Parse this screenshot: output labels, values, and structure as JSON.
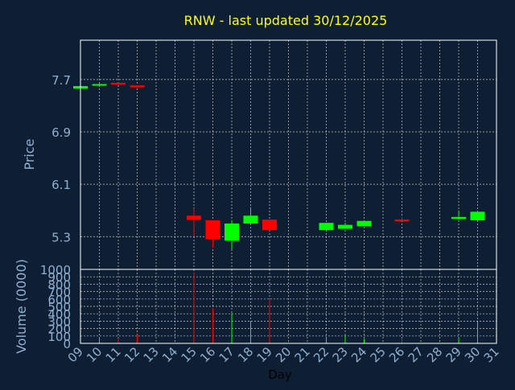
{
  "colors": {
    "background": "#0f1f33",
    "title": "#ffff00",
    "axis_text": "#8fb0d0",
    "frame": "#ffffff",
    "grid": "#ffffff",
    "up": "#00ff00",
    "down": "#ff0000"
  },
  "chart_data": [
    {
      "type": "candlestick",
      "title": "RNW - last updated 30/12/2025",
      "ylabel": "Price",
      "ylim": [
        4.8,
        8.3
      ],
      "yticks": [
        5.3,
        6.1,
        6.9,
        7.7
      ],
      "ytick_labels": [
        "5.3",
        "6.1",
        "6.9",
        "7.7"
      ],
      "grid": true,
      "candles": [
        {
          "day": 9,
          "open": 7.56,
          "close": 7.6,
          "high": 7.6,
          "low": 7.56
        },
        {
          "day": 10,
          "open": 7.61,
          "close": 7.63,
          "high": 7.64,
          "low": 7.61
        },
        {
          "day": 11,
          "open": 7.65,
          "close": 7.64,
          "high": 7.65,
          "low": 7.64
        },
        {
          "day": 12,
          "open": 7.61,
          "close": 7.58,
          "high": 7.61,
          "low": 7.58
        },
        {
          "day": 15,
          "open": 5.62,
          "close": 5.56,
          "high": 5.73,
          "low": 5.3
        },
        {
          "day": 16,
          "open": 5.55,
          "close": 5.26,
          "high": 5.55,
          "low": 5.13
        },
        {
          "day": 17,
          "open": 5.24,
          "close": 5.5,
          "high": 5.55,
          "low": 5.11
        },
        {
          "day": 18,
          "open": 5.5,
          "close": 5.62,
          "high": 5.75,
          "low": 5.5
        },
        {
          "day": 19,
          "open": 5.56,
          "close": 5.4,
          "high": 5.56,
          "low": 5.4
        },
        {
          "day": 22,
          "open": 5.4,
          "close": 5.51,
          "high": 5.51,
          "low": 5.4
        },
        {
          "day": 23,
          "open": 5.42,
          "close": 5.48,
          "high": 5.51,
          "low": 5.42
        },
        {
          "day": 24,
          "open": 5.46,
          "close": 5.54,
          "high": 5.54,
          "low": 5.46
        },
        {
          "day": 26,
          "open": 5.56,
          "close": 5.55,
          "high": 5.6,
          "low": 5.54
        },
        {
          "day": 29,
          "open": 5.57,
          "close": 5.6,
          "high": 5.7,
          "low": 5.56
        },
        {
          "day": 30,
          "open": 5.55,
          "close": 5.68,
          "high": 5.68,
          "low": 5.55
        }
      ]
    },
    {
      "type": "bar",
      "ylabel": "Volume (0000)",
      "xlabel": "Day",
      "ylim": [
        0,
        1000
      ],
      "yticks": [
        0,
        100,
        200,
        300,
        400,
        500,
        600,
        700,
        800,
        900,
        1000
      ],
      "ytick_labels": [
        "0",
        "100",
        "200",
        "300",
        "400",
        "500",
        "600",
        "700",
        "800",
        "900",
        "1000"
      ],
      "categories": [
        "09",
        "10",
        "11",
        "12",
        "13",
        "14",
        "15",
        "16",
        "17",
        "18",
        "19",
        "20",
        "21",
        "22",
        "23",
        "24",
        "25",
        "26",
        "27",
        "28",
        "29",
        "30",
        "31"
      ],
      "grid": true,
      "bars": [
        {
          "day": 9,
          "value": 15,
          "direction": "up"
        },
        {
          "day": 10,
          "value": 80,
          "direction": "up"
        },
        {
          "day": 11,
          "value": 60,
          "direction": "down"
        },
        {
          "day": 12,
          "value": 120,
          "direction": "down"
        },
        {
          "day": 15,
          "value": 960,
          "direction": "down"
        },
        {
          "day": 16,
          "value": 480,
          "direction": "down"
        },
        {
          "day": 17,
          "value": 410,
          "direction": "up"
        },
        {
          "day": 18,
          "value": 300,
          "direction": "up"
        },
        {
          "day": 19,
          "value": 600,
          "direction": "down"
        },
        {
          "day": 22,
          "value": 90,
          "direction": "up"
        },
        {
          "day": 23,
          "value": 110,
          "direction": "up"
        },
        {
          "day": 24,
          "value": 60,
          "direction": "up"
        },
        {
          "day": 26,
          "value": 70,
          "direction": "down"
        },
        {
          "day": 29,
          "value": 90,
          "direction": "up"
        },
        {
          "day": 30,
          "value": 290,
          "direction": "up"
        }
      ]
    }
  ]
}
